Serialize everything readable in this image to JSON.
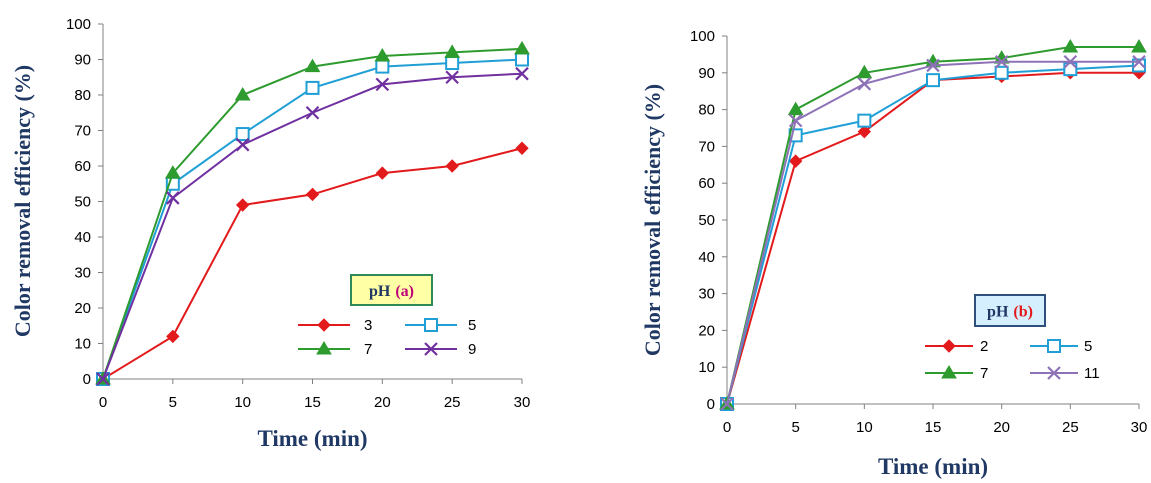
{
  "chart_data": [
    {
      "type": "line",
      "x": [
        0,
        5,
        10,
        15,
        20,
        25,
        30
      ],
      "xlim": [
        0,
        30
      ],
      "ylim": [
        0,
        100
      ],
      "xticks": [
        "0",
        "5",
        "10",
        "15",
        "20",
        "25",
        "30"
      ],
      "yticks": [
        "0",
        "10",
        "20",
        "30",
        "40",
        "50",
        "60",
        "70",
        "80",
        "90",
        "100"
      ],
      "xlabel": "Time (min)",
      "ylabel": "Color removal efficiency (%)",
      "grid": false,
      "legend": {
        "title_main": "pH",
        "title_tag": "(a)",
        "placement": "lower-right",
        "columns": 2
      },
      "series": [
        {
          "name": "3",
          "values": [
            0,
            12,
            49,
            52,
            58,
            60,
            65
          ],
          "color": "#e31a1c",
          "marker": "diamond"
        },
        {
          "name": "5",
          "values": [
            0,
            55,
            69,
            82,
            88,
            89,
            90
          ],
          "color": "#1f9fd6",
          "marker": "square-open"
        },
        {
          "name": "7",
          "values": [
            0,
            58,
            80,
            88,
            91,
            92,
            93
          ],
          "color": "#2e9b2e",
          "marker": "triangle"
        },
        {
          "name": "9",
          "values": [
            0,
            51,
            66,
            75,
            83,
            85,
            86
          ],
          "color": "#7030a0",
          "marker": "x"
        }
      ]
    },
    {
      "type": "line",
      "x": [
        0,
        5,
        10,
        15,
        20,
        25,
        30
      ],
      "xlim": [
        0,
        30
      ],
      "ylim": [
        0,
        100
      ],
      "xticks": [
        "0",
        "5",
        "10",
        "15",
        "20",
        "25",
        "30"
      ],
      "yticks": [
        "0",
        "10",
        "20",
        "30",
        "40",
        "50",
        "60",
        "70",
        "80",
        "90",
        "100"
      ],
      "xlabel": "Time (min)",
      "ylabel": "Color removal efficiency (%)",
      "grid": false,
      "legend": {
        "title_main": "pH",
        "title_tag": "(b)",
        "placement": "lower-right",
        "columns": 2
      },
      "series": [
        {
          "name": "2",
          "values": [
            0,
            66,
            74,
            88,
            89,
            90,
            90
          ],
          "color": "#e31a1c",
          "marker": "diamond"
        },
        {
          "name": "5",
          "values": [
            0,
            73,
            77,
            88,
            90,
            91,
            92
          ],
          "color": "#1f9fd6",
          "marker": "square-open"
        },
        {
          "name": "7",
          "values": [
            0,
            80,
            90,
            93,
            94,
            97,
            97
          ],
          "color": "#2e9b2e",
          "marker": "triangle"
        },
        {
          "name": "11",
          "values": [
            0,
            77,
            87,
            92,
            93,
            93,
            93
          ],
          "color": "#8e72b8",
          "marker": "x"
        }
      ]
    }
  ],
  "colors": {
    "axis_label": "#1f3864",
    "legend_title_box_fill": "#ffffa6",
    "legend_title_box_border_a": "#2e8b57",
    "legend_title_box_fill_b": "#d6efff",
    "legend_title_box_border_b": "#2f4f7f",
    "legend_tag_a": "#c0007a",
    "legend_tag_b": "#e31a1c"
  }
}
